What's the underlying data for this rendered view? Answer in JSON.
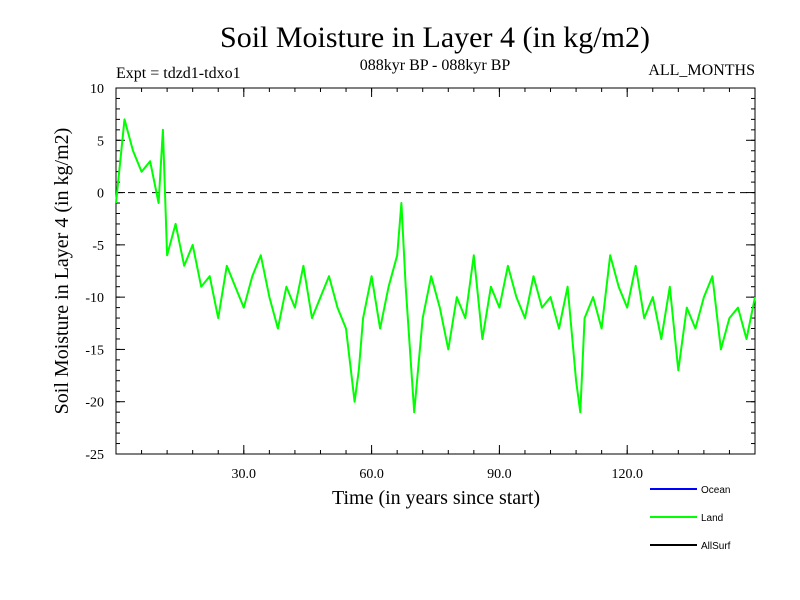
{
  "chart_data": {
    "type": "line",
    "title": "Soil Moisture in Layer 4 (in kg/m2)",
    "subtitle_left": "Expt = tdzd1-tdxo1",
    "subtitle_center": "088kyr BP - 088kyr BP",
    "subtitle_right": "ALL_MONTHS",
    "xlabel": "Time (in years since start)",
    "ylabel": "Soil Moisture in Layer 4 (in kg/m2)",
    "xlim": [
      0,
      150
    ],
    "ylim": [
      -25,
      10
    ],
    "x_ticks": [
      30,
      60,
      90,
      120
    ],
    "x_tick_labels": [
      "30.0",
      "60.0",
      "90.0",
      "120.0"
    ],
    "y_ticks": [
      10,
      5,
      0,
      -5,
      -10,
      -15,
      -20,
      -25
    ],
    "y_tick_labels": [
      "10",
      "5",
      "0",
      "-5",
      "-10",
      "-15",
      "-20",
      "-25"
    ],
    "reference_line": 0,
    "legend": [
      {
        "name": "Ocean",
        "color": "#0000ff"
      },
      {
        "name": "Land",
        "color": "#00ff00"
      },
      {
        "name": "AllSurf",
        "color": "#000000"
      }
    ],
    "series": [
      {
        "name": "Land",
        "color": "#00ff00",
        "x": [
          0,
          2,
          4,
          6,
          8,
          10,
          11,
          12,
          14,
          16,
          18,
          20,
          22,
          24,
          26,
          28,
          30,
          32,
          34,
          36,
          38,
          40,
          42,
          44,
          46,
          48,
          50,
          52,
          54,
          56,
          57,
          58,
          60,
          62,
          64,
          66,
          67,
          68,
          70,
          72,
          74,
          76,
          78,
          80,
          82,
          84,
          86,
          88,
          90,
          92,
          94,
          96,
          98,
          100,
          102,
          104,
          106,
          108,
          109,
          110,
          112,
          114,
          116,
          118,
          120,
          122,
          124,
          126,
          128,
          130,
          132,
          134,
          136,
          138,
          140,
          142,
          144,
          146,
          148,
          150
        ],
        "values": [
          -1,
          7,
          4,
          2,
          3,
          -1,
          6,
          -6,
          -3,
          -7,
          -5,
          -9,
          -8,
          -12,
          -7,
          -9,
          -11,
          -8,
          -6,
          -10,
          -13,
          -9,
          -11,
          -7,
          -12,
          -10,
          -8,
          -11,
          -13,
          -20,
          -17,
          -12,
          -8,
          -13,
          -9,
          -6,
          -1,
          -9,
          -21,
          -12,
          -8,
          -11,
          -15,
          -10,
          -12,
          -6,
          -14,
          -9,
          -11,
          -7,
          -10,
          -12,
          -8,
          -11,
          -10,
          -13,
          -9,
          -18,
          -21,
          -12,
          -10,
          -13,
          -6,
          -9,
          -11,
          -7,
          -12,
          -10,
          -14,
          -9,
          -17,
          -11,
          -13,
          -10,
          -8,
          -15,
          -12,
          -11,
          -14,
          -10
        ]
      }
    ]
  }
}
